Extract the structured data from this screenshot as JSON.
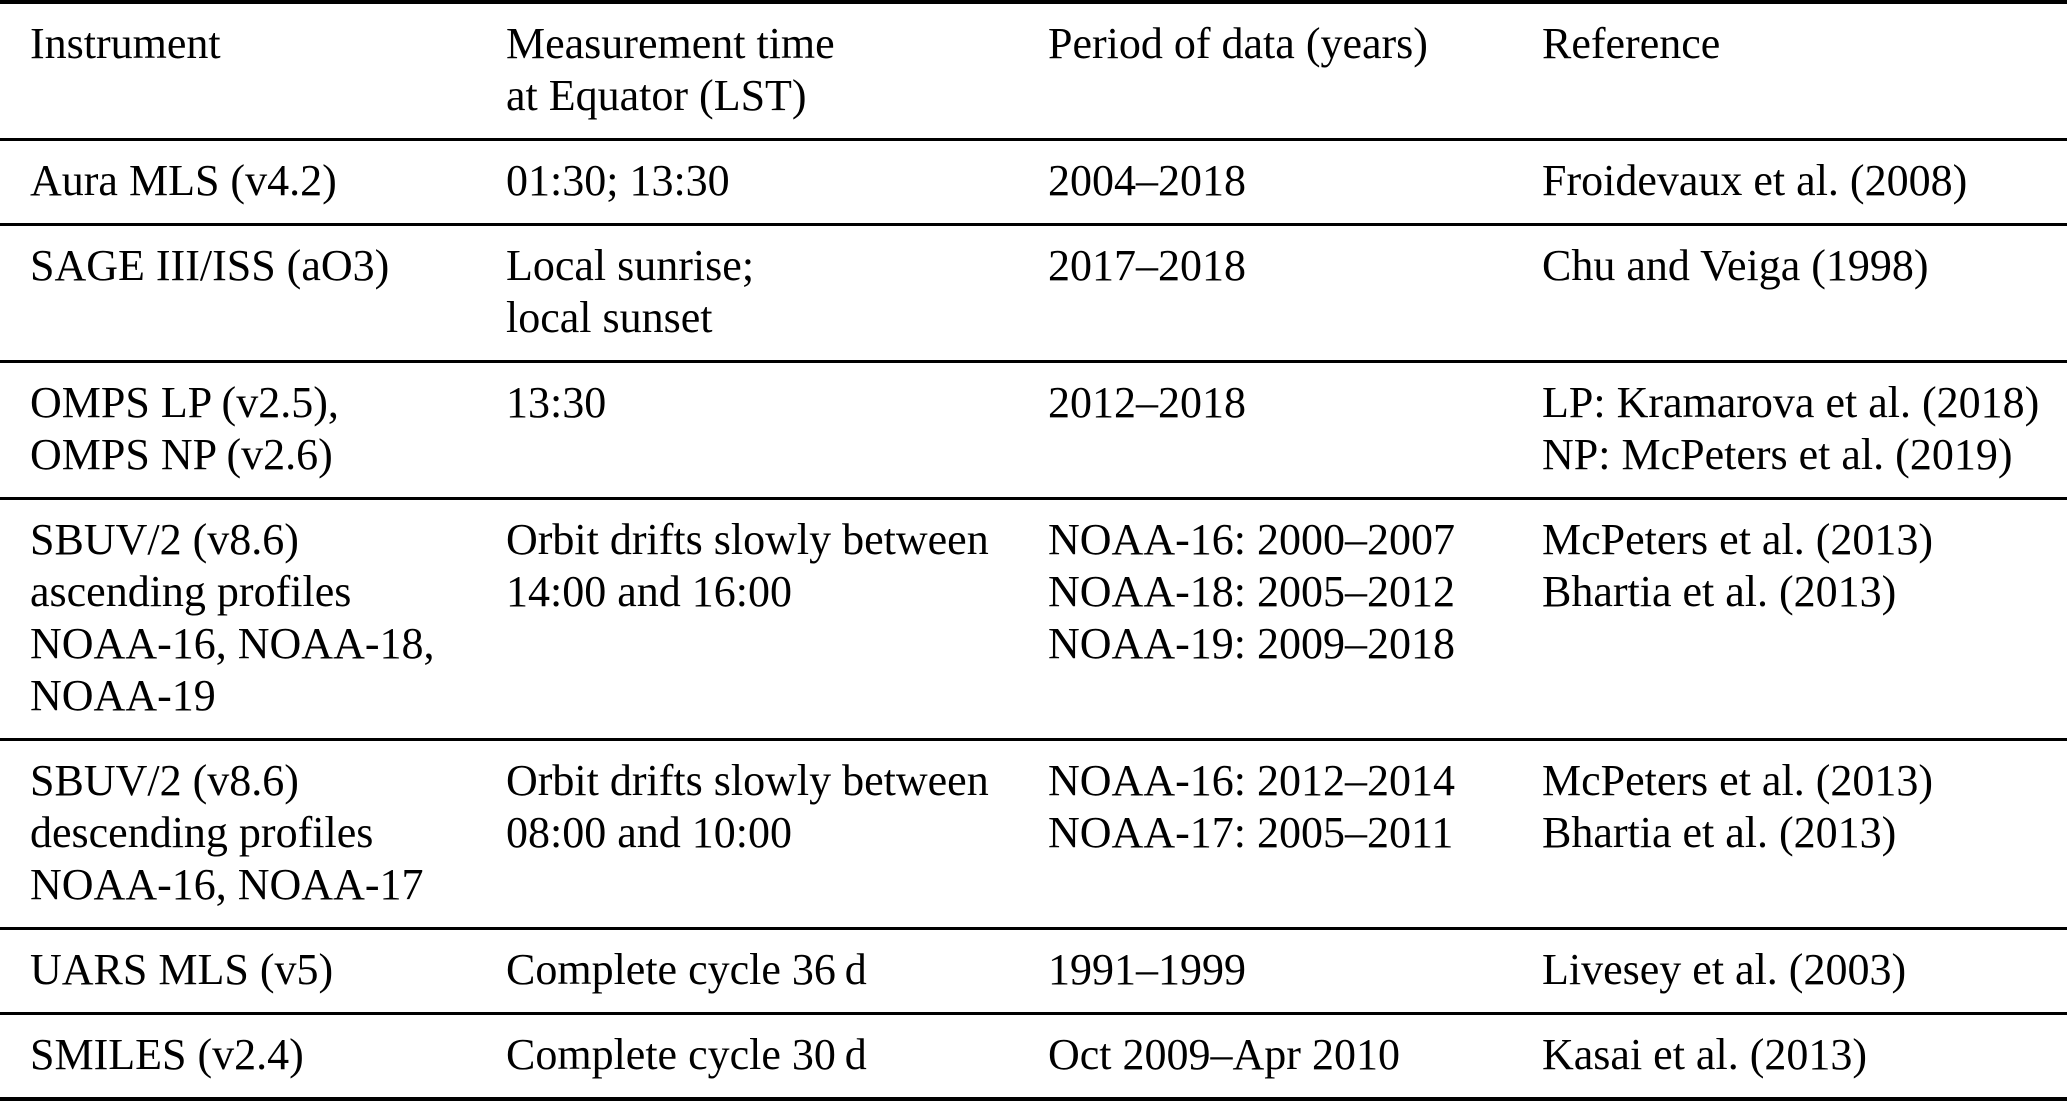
{
  "table": {
    "header": {
      "instrument": "Instrument",
      "time": "Measurement time\nat Equator (LST)",
      "period": "Period of data (years)",
      "reference": "Reference"
    },
    "rows": [
      {
        "instrument": "Aura MLS (v4.2)",
        "time": "01:30; 13:30",
        "period": "2004–2018",
        "reference": "Froidevaux et al. (2008)"
      },
      {
        "instrument": "SAGE III/ISS (aO3)",
        "time": "Local sunrise;\nlocal sunset",
        "period": "2017–2018",
        "reference": "Chu and Veiga (1998)"
      },
      {
        "instrument": "OMPS LP (v2.5),\nOMPS NP (v2.6)",
        "time": "13:30",
        "period": "2012–2018",
        "reference": "LP: Kramarova et al. (2018)\nNP: McPeters et al. (2019)"
      },
      {
        "instrument": "SBUV/2 (v8.6)\nascending profiles\nNOAA-16, NOAA-18,\nNOAA-19",
        "time": "Orbit drifts slowly between\n14:00 and 16:00",
        "period": "NOAA-16: 2000–2007\nNOAA-18: 2005–2012\nNOAA-19: 2009–2018",
        "reference": "McPeters et al. (2013)\nBhartia et al. (2013)"
      },
      {
        "instrument": "SBUV/2 (v8.6)\ndescending profiles\nNOAA-16, NOAA-17",
        "time": "Orbit drifts slowly between\n08:00 and 10:00",
        "period": "NOAA-16: 2012–2014\nNOAA-17: 2005–2011",
        "reference": "McPeters et al. (2013)\nBhartia et al. (2013)"
      },
      {
        "instrument": "UARS MLS (v5)",
        "time": "Complete cycle 36 d",
        "period": "1991–1999",
        "reference": "Livesey et al. (2003)"
      },
      {
        "instrument": "SMILES (v2.4)",
        "time": "Complete cycle 30 d",
        "period": "Oct 2009–Apr 2010",
        "reference": "Kasai et al. (2013)"
      }
    ]
  }
}
